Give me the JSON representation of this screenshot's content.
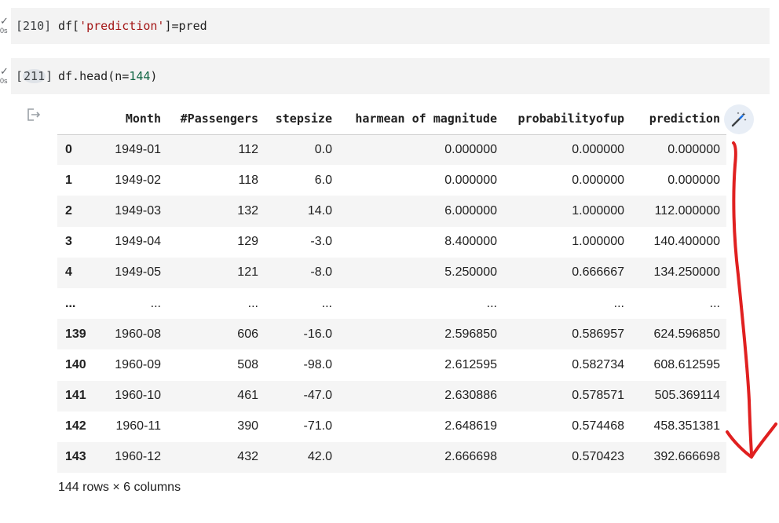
{
  "cells": [
    {
      "status_icon": "check-icon",
      "duration": "0s",
      "prompt": "[210]",
      "code_parts": [
        "df[",
        "'prediction'",
        "]=pred"
      ]
    },
    {
      "status_icon": "check-icon",
      "duration": "0s",
      "prompt_open": "[",
      "prompt_num": "211",
      "prompt_close": "]",
      "code_parts": [
        "df.head(n=",
        "144",
        ")"
      ]
    }
  ],
  "output": {
    "icon": "output-redirect-icon",
    "magic_button_icon": "magic-wand-icon",
    "columns": [
      "Month",
      "#Passengers",
      "stepsize",
      "harmean of magnitude",
      "probabilityofup",
      "prediction"
    ],
    "rows": [
      {
        "index": "0",
        "values": [
          "1949-01",
          "112",
          "0.0",
          "0.000000",
          "0.000000",
          "0.000000"
        ]
      },
      {
        "index": "1",
        "values": [
          "1949-02",
          "118",
          "6.0",
          "0.000000",
          "0.000000",
          "0.000000"
        ]
      },
      {
        "index": "2",
        "values": [
          "1949-03",
          "132",
          "14.0",
          "6.000000",
          "1.000000",
          "112.000000"
        ]
      },
      {
        "index": "3",
        "values": [
          "1949-04",
          "129",
          "-3.0",
          "8.400000",
          "1.000000",
          "140.400000"
        ]
      },
      {
        "index": "4",
        "values": [
          "1949-05",
          "121",
          "-8.0",
          "5.250000",
          "0.666667",
          "134.250000"
        ]
      },
      {
        "index": "...",
        "values": [
          "...",
          "...",
          "...",
          "...",
          "...",
          "..."
        ]
      },
      {
        "index": "139",
        "values": [
          "1960-08",
          "606",
          "-16.0",
          "2.596850",
          "0.586957",
          "624.596850"
        ]
      },
      {
        "index": "140",
        "values": [
          "1960-09",
          "508",
          "-98.0",
          "2.612595",
          "0.582734",
          "608.612595"
        ]
      },
      {
        "index": "141",
        "values": [
          "1960-10",
          "461",
          "-47.0",
          "2.630886",
          "0.578571",
          "505.369114"
        ]
      },
      {
        "index": "142",
        "values": [
          "1960-11",
          "390",
          "-71.0",
          "2.648619",
          "0.574468",
          "458.351381"
        ]
      },
      {
        "index": "143",
        "values": [
          "1960-12",
          "432",
          "42.0",
          "2.666698",
          "0.570423",
          "392.666698"
        ]
      }
    ],
    "shape_text": "144 rows × 6 columns"
  },
  "annotation": {
    "icon": "red-arrow-down-icon",
    "color": "#e02020"
  }
}
